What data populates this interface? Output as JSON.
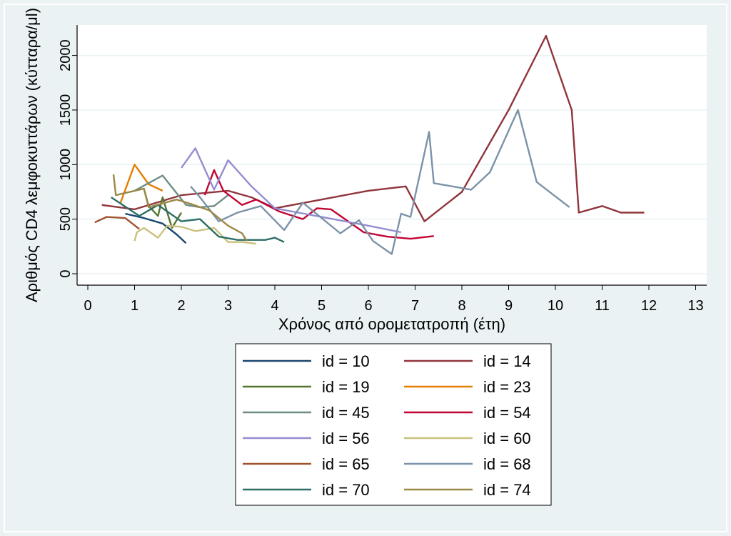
{
  "chart_data": {
    "type": "line",
    "xlabel": "Χρόνος από ορομετατροπή (έτη)",
    "ylabel": "Αριθμός CD4 λεμφοκυττάρων (κύτταρα/μl)",
    "xlim": [
      0,
      13
    ],
    "ylim": [
      0,
      2250
    ],
    "xticks": [
      0,
      1,
      2,
      3,
      4,
      5,
      6,
      7,
      8,
      9,
      10,
      11,
      12,
      13
    ],
    "yticks": [
      0,
      500,
      1000,
      1500,
      2000
    ],
    "grid": true,
    "legend_position": "bottom",
    "series": [
      {
        "name": "id = 10",
        "color": "#1a476f",
        "points": [
          [
            0.8,
            550
          ],
          [
            1.2,
            510
          ],
          [
            1.6,
            460
          ],
          [
            1.9,
            360
          ],
          [
            2.1,
            280
          ]
        ]
      },
      {
        "name": "id = 14",
        "color": "#90353b",
        "points": [
          [
            0.3,
            630
          ],
          [
            1.0,
            590
          ],
          [
            2.0,
            720
          ],
          [
            3.0,
            760
          ],
          [
            3.5,
            700
          ],
          [
            4.0,
            600
          ],
          [
            5.0,
            680
          ],
          [
            6.0,
            760
          ],
          [
            6.8,
            800
          ],
          [
            7.2,
            480
          ],
          [
            8.0,
            750
          ],
          [
            9.0,
            1500
          ],
          [
            9.8,
            2180
          ],
          [
            10.35,
            1500
          ],
          [
            10.5,
            560
          ],
          [
            11.0,
            620
          ],
          [
            11.4,
            560
          ],
          [
            11.9,
            560
          ]
        ]
      },
      {
        "name": "id = 19",
        "color": "#55752f",
        "points": [
          [
            1.2,
            780
          ],
          [
            1.3,
            620
          ],
          [
            1.5,
            530
          ],
          [
            1.6,
            700
          ],
          [
            1.8,
            420
          ],
          [
            2.0,
            560
          ]
        ]
      },
      {
        "name": "id = 23",
        "color": "#e37e00",
        "points": [
          [
            0.7,
            650
          ],
          [
            1.0,
            1000
          ],
          [
            1.3,
            820
          ],
          [
            1.6,
            760
          ]
        ]
      },
      {
        "name": "id = 45",
        "color": "#6e8e84",
        "points": [
          [
            1.0,
            760
          ],
          [
            1.6,
            900
          ],
          [
            2.1,
            630
          ],
          [
            2.4,
            610
          ],
          [
            2.7,
            620
          ],
          [
            3.0,
            720
          ]
        ]
      },
      {
        "name": "id = 54",
        "color": "#c10534",
        "points": [
          [
            2.5,
            720
          ],
          [
            2.7,
            950
          ],
          [
            2.9,
            760
          ],
          [
            3.3,
            630
          ],
          [
            3.6,
            680
          ],
          [
            4.1,
            570
          ],
          [
            4.6,
            500
          ],
          [
            4.9,
            600
          ],
          [
            5.2,
            590
          ],
          [
            5.9,
            380
          ],
          [
            6.4,
            340
          ],
          [
            6.9,
            320
          ],
          [
            7.4,
            345
          ]
        ]
      },
      {
        "name": "id = 56",
        "color": "#938dd2",
        "points": [
          [
            2.0,
            970
          ],
          [
            2.3,
            1150
          ],
          [
            2.7,
            770
          ],
          [
            3.0,
            1040
          ],
          [
            3.5,
            800
          ],
          [
            4.0,
            600
          ],
          [
            4.5,
            560
          ],
          [
            5.0,
            520
          ],
          [
            5.5,
            480
          ],
          [
            6.0,
            440
          ],
          [
            6.7,
            380
          ]
        ]
      },
      {
        "name": "id = 60",
        "color": "#cac27e",
        "points": [
          [
            1.0,
            300
          ],
          [
            1.05,
            380
          ],
          [
            1.2,
            420
          ],
          [
            1.5,
            330
          ],
          [
            1.7,
            440
          ],
          [
            2.0,
            430
          ],
          [
            2.3,
            390
          ],
          [
            2.7,
            420
          ],
          [
            3.0,
            290
          ],
          [
            3.3,
            290
          ],
          [
            3.6,
            275
          ]
        ]
      },
      {
        "name": "id = 65",
        "color": "#a0522d",
        "points": [
          [
            0.15,
            470
          ],
          [
            0.4,
            520
          ],
          [
            0.8,
            510
          ],
          [
            1.1,
            410
          ]
        ]
      },
      {
        "name": "id = 68",
        "color": "#7b92a8",
        "points": [
          [
            2.2,
            800
          ],
          [
            2.4,
            700
          ],
          [
            2.8,
            480
          ],
          [
            3.2,
            560
          ],
          [
            3.7,
            620
          ],
          [
            4.2,
            400
          ],
          [
            4.6,
            650
          ],
          [
            5.4,
            370
          ],
          [
            5.8,
            490
          ],
          [
            6.1,
            300
          ],
          [
            6.5,
            180
          ],
          [
            6.7,
            550
          ],
          [
            6.9,
            520
          ],
          [
            7.3,
            1300
          ],
          [
            7.4,
            830
          ],
          [
            8.2,
            770
          ],
          [
            8.6,
            930
          ],
          [
            9.2,
            1500
          ],
          [
            9.6,
            840
          ],
          [
            10.3,
            610
          ]
        ]
      },
      {
        "name": "id = 70",
        "color": "#2d6d66",
        "points": [
          [
            0.5,
            700
          ],
          [
            1.1,
            530
          ],
          [
            1.5,
            630
          ],
          [
            2.0,
            480
          ],
          [
            2.4,
            500
          ],
          [
            2.8,
            340
          ],
          [
            3.2,
            310
          ],
          [
            3.8,
            310
          ],
          [
            4.0,
            330
          ],
          [
            4.2,
            290
          ]
        ]
      },
      {
        "name": "id = 74",
        "color": "#9c8847",
        "points": [
          [
            0.55,
            910
          ],
          [
            0.6,
            720
          ],
          [
            1.2,
            780
          ],
          [
            1.3,
            610
          ],
          [
            1.9,
            680
          ],
          [
            2.2,
            640
          ],
          [
            2.6,
            580
          ],
          [
            3.0,
            440
          ],
          [
            3.3,
            370
          ],
          [
            3.4,
            300
          ]
        ]
      }
    ]
  }
}
